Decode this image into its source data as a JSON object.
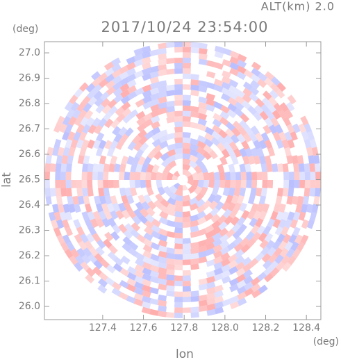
{
  "chart_data": {
    "type": "ppi",
    "title": "2017/10/24 23:54:00",
    "subtitle": "ALT(km) 2.0",
    "y_unit": "(deg)",
    "x_unit": "(deg)",
    "y_label": "lat",
    "x_label": "lon",
    "xlim": [
      127.114,
      128.471
    ],
    "ylim": [
      25.948,
      27.044
    ],
    "xticks": [
      127.4,
      127.6,
      127.8,
      {
        "value": 128.0,
        "label": "128.0"
      },
      128.2,
      128.4
    ],
    "yticks": [
      {
        "value": 26.0,
        "label": "26.0"
      },
      26.1,
      26.2,
      26.3,
      26.4,
      26.5,
      26.6,
      26.7,
      26.8,
      26.9,
      {
        "value": 27.0,
        "label": "27.0"
      }
    ]
  }
}
